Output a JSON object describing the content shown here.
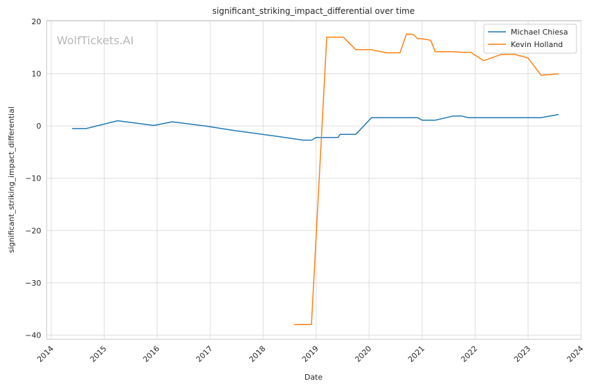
{
  "chart_data": {
    "type": "line",
    "title": "significant_striking_impact_differential over time",
    "xlabel": "Date",
    "ylabel": "significant_striking_impact_differential",
    "watermark": "WolfTickets.AI",
    "x_ticks": [
      "2014",
      "2015",
      "2016",
      "2017",
      "2018",
      "2019",
      "2020",
      "2021",
      "2022",
      "2023",
      "2024"
    ],
    "y_ticks": [
      20,
      10,
      0,
      -10,
      -20,
      -30,
      -40
    ],
    "y_tick_labels": [
      "20",
      "10",
      "0",
      "−10",
      "−20",
      "−30",
      "−40"
    ],
    "xlim": [
      "2013-12-01",
      "2024-01-01"
    ],
    "ylim": [
      -40.8,
      20.2
    ],
    "grid": true,
    "legend_position": "top-right",
    "series": [
      {
        "name": "Michael Chiesa",
        "color": "#1f77b4",
        "x": [
          "2014-05-25",
          "2014-08-30",
          "2015-04-04",
          "2015-12-10",
          "2016-04-13",
          "2016-12-01",
          "2017-06-01",
          "2018-06-01",
          "2018-10-01",
          "2018-12-01",
          "2019-01-01",
          "2019-06-01",
          "2019-06-15",
          "2019-10-01",
          "2020-01-18",
          "2020-12-01",
          "2021-01-01",
          "2021-04-01",
          "2021-08-01",
          "2021-10-01",
          "2021-11-15",
          "2022-06-01",
          "2023-04-01",
          "2023-07-31"
        ],
        "y": [
          -0.5,
          -0.5,
          1.0,
          0.1,
          0.8,
          0.0,
          -0.8,
          -2.2,
          -2.7,
          -2.7,
          -2.2,
          -2.2,
          -1.6,
          -1.6,
          1.6,
          1.6,
          1.1,
          1.1,
          1.9,
          1.9,
          1.6,
          1.6,
          1.6,
          2.2
        ]
      },
      {
        "name": "Kevin Holland",
        "color": "#ff7f0e",
        "x": [
          "2018-08-01",
          "2018-11-30",
          "2019-03-15",
          "2019-07-07",
          "2019-10-01",
          "2020-01-15",
          "2020-05-01",
          "2020-08-01",
          "2020-09-15",
          "2020-11-01",
          "2020-12-01",
          "2021-01-01",
          "2021-03-01",
          "2021-04-01",
          "2021-08-01",
          "2021-10-01",
          "2021-12-01",
          "2022-03-01",
          "2022-07-01",
          "2022-10-01",
          "2023-01-01",
          "2023-04-01",
          "2023-07-31"
        ],
        "y": [
          -38,
          -38,
          17.0,
          17.0,
          14.6,
          14.6,
          14.0,
          14.0,
          17.6,
          17.5,
          16.7,
          16.7,
          16.4,
          14.2,
          14.2,
          14.1,
          14.1,
          12.5,
          13.7,
          13.7,
          13.0,
          9.7,
          10.0
        ]
      }
    ]
  }
}
